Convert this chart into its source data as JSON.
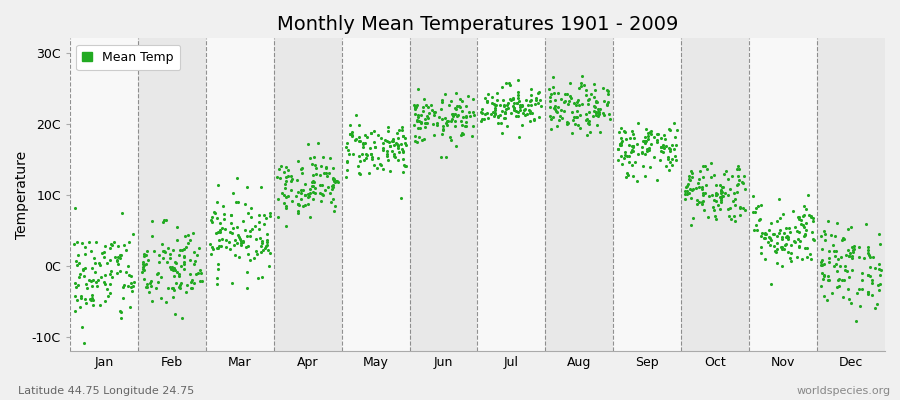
{
  "title": "Monthly Mean Temperatures 1901 - 2009",
  "ylabel": "Temperature",
  "xlabel_bottom_left": "Latitude 44.75 Longitude 24.75",
  "xlabel_bottom_right": "worldspecies.org",
  "legend_label": "Mean Temp",
  "months": [
    "Jan",
    "Feb",
    "Mar",
    "Apr",
    "May",
    "Jun",
    "Jul",
    "Aug",
    "Sep",
    "Oct",
    "Nov",
    "Dec"
  ],
  "month_mean_temps": [
    -1.5,
    -0.5,
    4.5,
    11.5,
    16.5,
    20.5,
    22.5,
    22.0,
    16.5,
    10.5,
    4.5,
    0.0
  ],
  "month_std_temps": [
    3.5,
    3.2,
    2.8,
    2.2,
    2.0,
    1.8,
    1.5,
    1.8,
    2.0,
    2.2,
    2.5,
    3.0
  ],
  "n_years": 109,
  "ylim": [
    -12,
    32
  ],
  "yticks": [
    -10,
    0,
    10,
    20,
    30
  ],
  "ytick_labels": [
    "-10C",
    "0C",
    "10C",
    "20C",
    "30C"
  ],
  "dot_color": "#22aa22",
  "dot_size": 5,
  "background_color": "#f0f0f0",
  "band_color_odd": "#e8e8e8",
  "band_color_even": "#f8f8f8",
  "dashed_line_color": "#777777",
  "title_fontsize": 14,
  "axis_fontsize": 10,
  "tick_fontsize": 9,
  "seed": 42
}
